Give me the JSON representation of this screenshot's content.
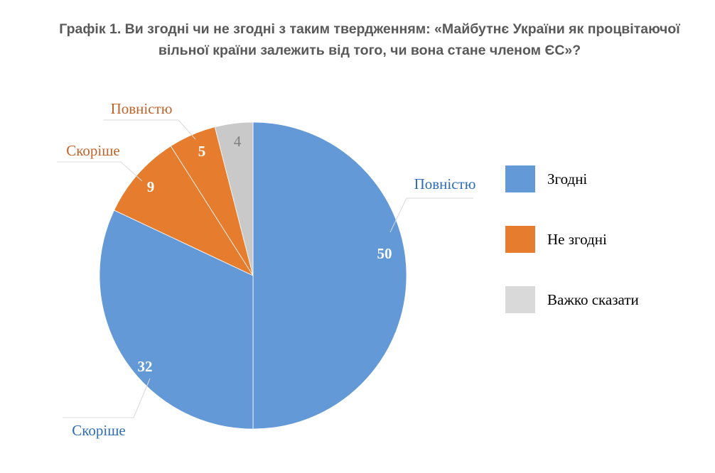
{
  "chart_data": {
    "type": "pie",
    "title": "Графік 1. Ви згодні чи не згодні з таким твердженням: «Майбутнє України як процвітаючої вільної країни залежить від того, чи вона стане членом ЄС»?",
    "slices": [
      {
        "group": "Згодні",
        "label": "Повністю",
        "value": 50,
        "color": "#6399d6"
      },
      {
        "group": "Згодні",
        "label": "Скоріше",
        "value": 32,
        "color": "#6399d6"
      },
      {
        "group": "Не згодні",
        "label": "Скоріше",
        "value": 9,
        "color": "#e57c2e"
      },
      {
        "group": "Не згодні",
        "label": "Повністю",
        "value": 5,
        "color": "#e57c2e"
      },
      {
        "group": "Важко сказати",
        "label": "",
        "value": 4,
        "color": "#c9c9c9"
      }
    ],
    "legend": {
      "position": "right",
      "entries": [
        {
          "name": "Згодні",
          "color": "#6399d6"
        },
        {
          "name": "Не згодні",
          "color": "#e57c2e"
        },
        {
          "name": "Важко сказати",
          "color": "#d9d9d9"
        }
      ]
    },
    "label_colors": {
      "Згодні": "#2e6db4",
      "Не згодні": "#c0632a"
    }
  }
}
